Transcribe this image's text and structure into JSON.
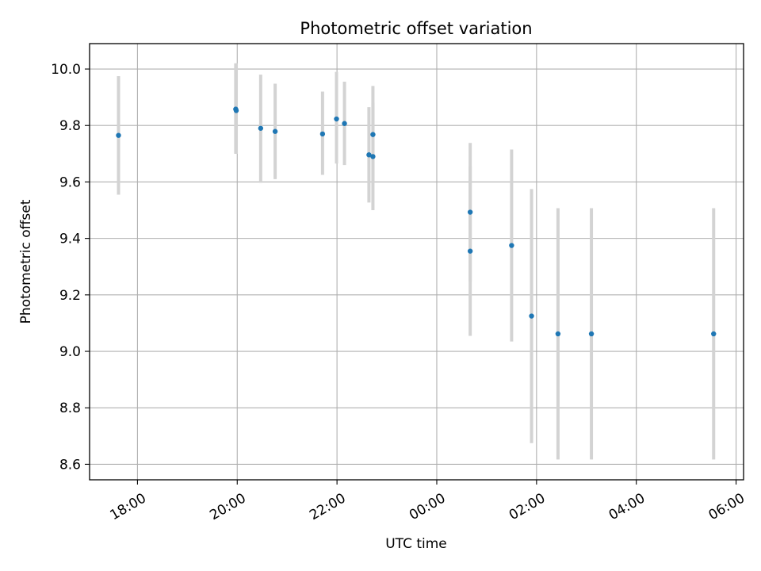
{
  "chart_data": {
    "type": "scatter",
    "title": "Photometric offset variation",
    "xlabel": "UTC time",
    "ylabel": "Photometric offset",
    "x_ticks": [
      {
        "value": 18.0,
        "label": "18:00"
      },
      {
        "value": 20.0,
        "label": "20:00"
      },
      {
        "value": 22.0,
        "label": "22:00"
      },
      {
        "value": 24.0,
        "label": "00:00"
      },
      {
        "value": 26.0,
        "label": "02:00"
      },
      {
        "value": 28.0,
        "label": "04:00"
      },
      {
        "value": 30.0,
        "label": "06:00"
      }
    ],
    "y_ticks": [
      {
        "value": 8.6,
        "label": "8.6"
      },
      {
        "value": 8.8,
        "label": "8.8"
      },
      {
        "value": 9.0,
        "label": "9.0"
      },
      {
        "value": 9.2,
        "label": "9.2"
      },
      {
        "value": 9.4,
        "label": "9.4"
      },
      {
        "value": 9.6,
        "label": "9.6"
      },
      {
        "value": 9.8,
        "label": "9.8"
      },
      {
        "value": 10.0,
        "label": "10.0"
      }
    ],
    "xlim": [
      17.04,
      30.15
    ],
    "ylim": [
      8.545,
      10.09
    ],
    "grid": true,
    "marker_color": "#1f77b4",
    "errorbar_color": "#d3d3d3",
    "points": [
      {
        "x": 17.62,
        "y": 9.765,
        "err_low": 9.555,
        "err_high": 9.975
      },
      {
        "x": 19.97,
        "y": 9.858,
        "err_low": 9.7,
        "err_high": 10.02
      },
      {
        "x": 19.98,
        "y": 9.853,
        "err_low": 9.7,
        "err_high": 10.02
      },
      {
        "x": 20.47,
        "y": 9.79,
        "err_low": 9.597,
        "err_high": 9.98
      },
      {
        "x": 20.76,
        "y": 9.779,
        "err_low": 9.61,
        "err_high": 9.948
      },
      {
        "x": 21.71,
        "y": 9.77,
        "err_low": 9.625,
        "err_high": 9.92
      },
      {
        "x": 21.99,
        "y": 9.823,
        "err_low": 9.665,
        "err_high": 9.99
      },
      {
        "x": 22.15,
        "y": 9.807,
        "err_low": 9.66,
        "err_high": 9.955
      },
      {
        "x": 22.64,
        "y": 9.696,
        "err_low": 9.527,
        "err_high": 9.865
      },
      {
        "x": 22.72,
        "y": 9.69,
        "err_low": 9.5,
        "err_high": 9.88
      },
      {
        "x": 22.72,
        "y": 9.768,
        "err_low": 9.597,
        "err_high": 9.94
      },
      {
        "x": 24.67,
        "y": 9.493,
        "err_low": 9.248,
        "err_high": 9.738
      },
      {
        "x": 24.67,
        "y": 9.355,
        "err_low": 9.055,
        "err_high": 9.655
      },
      {
        "x": 25.5,
        "y": 9.375,
        "err_low": 9.035,
        "err_high": 9.715
      },
      {
        "x": 25.9,
        "y": 9.125,
        "err_low": 8.675,
        "err_high": 9.575
      },
      {
        "x": 26.43,
        "y": 9.062,
        "err_low": 8.617,
        "err_high": 9.507
      },
      {
        "x": 27.1,
        "y": 9.062,
        "err_low": 8.617,
        "err_high": 9.507
      },
      {
        "x": 29.55,
        "y": 9.062,
        "err_low": 8.617,
        "err_high": 9.507
      }
    ]
  }
}
